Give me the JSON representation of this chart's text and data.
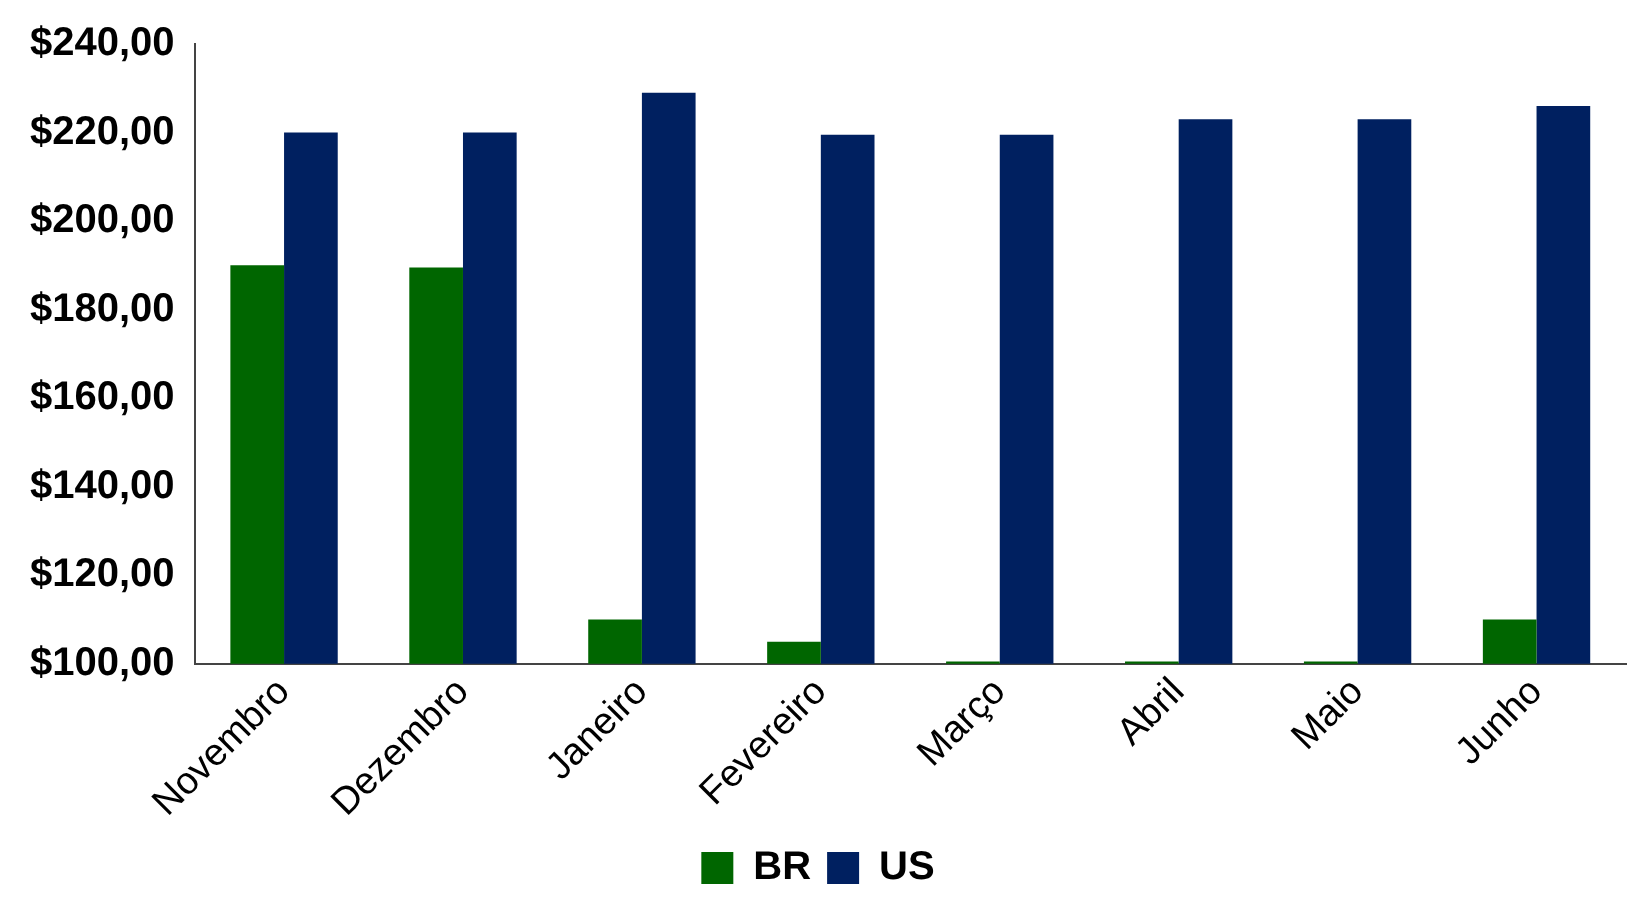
{
  "chart_data": {
    "type": "bar",
    "categories": [
      "Novembro",
      "Dezembro",
      "Janeiro",
      "Fevereiro",
      "Março",
      "Abril",
      "Maio",
      "Junho"
    ],
    "series": [
      {
        "name": "BR",
        "color": "#006600",
        "values": [
          190,
          189.5,
          110,
          105,
          100.5,
          100.5,
          100.5,
          110
        ]
      },
      {
        "name": "US",
        "color": "#002060",
        "values": [
          220,
          220,
          229,
          219.5,
          219.5,
          223,
          223,
          226
        ]
      }
    ],
    "ylim": [
      100,
      240
    ],
    "yticks": [
      {
        "value": 100,
        "label": "$100,00"
      },
      {
        "value": 120,
        "label": "$120,00"
      },
      {
        "value": 140,
        "label": "$140,00"
      },
      {
        "value": 160,
        "label": "$160,00"
      },
      {
        "value": 180,
        "label": "$180,00"
      },
      {
        "value": 200,
        "label": "$200,00"
      },
      {
        "value": 220,
        "label": "$220,00"
      },
      {
        "value": 240,
        "label": "$240,00"
      }
    ],
    "grid": false,
    "legend": "bottom"
  }
}
